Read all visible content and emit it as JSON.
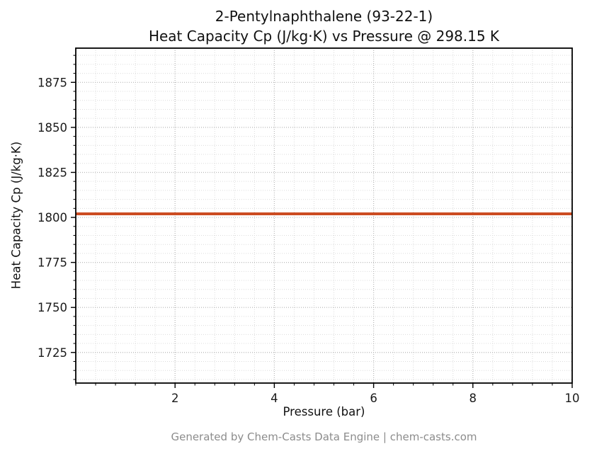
{
  "title": {
    "line1": "2-Pentylnaphthalene (93-22-1)",
    "line2": "Heat Capacity Cp (J/kg·K) vs Pressure @ 298.15 K"
  },
  "footer": "Generated by Chem-Casts Data Engine | chem-casts.com",
  "chart_data": {
    "type": "line",
    "title": "2-Pentylnaphthalene (93-22-1)\nHeat Capacity Cp (J/kg·K) vs Pressure @ 298.15 K",
    "xlabel": "Pressure (bar)",
    "ylabel": "Heat Capacity Cp (J/kg·K)",
    "xlim": [
      0,
      10
    ],
    "ylim": [
      1708,
      1894
    ],
    "xticks": [
      2,
      4,
      6,
      8,
      10
    ],
    "yticks": [
      1725,
      1750,
      1775,
      1800,
      1825,
      1850,
      1875
    ],
    "x_minor_step": 0.4,
    "y_minor_step": 5,
    "grid": true,
    "grid_major_color": "#b9b9b9",
    "grid_minor_color": "#dcdcdc",
    "series": [
      {
        "name": "Cp",
        "x": [
          0,
          10
        ],
        "y": [
          1802,
          1802
        ],
        "color": "#cc4c22",
        "linewidth": 4
      }
    ]
  }
}
